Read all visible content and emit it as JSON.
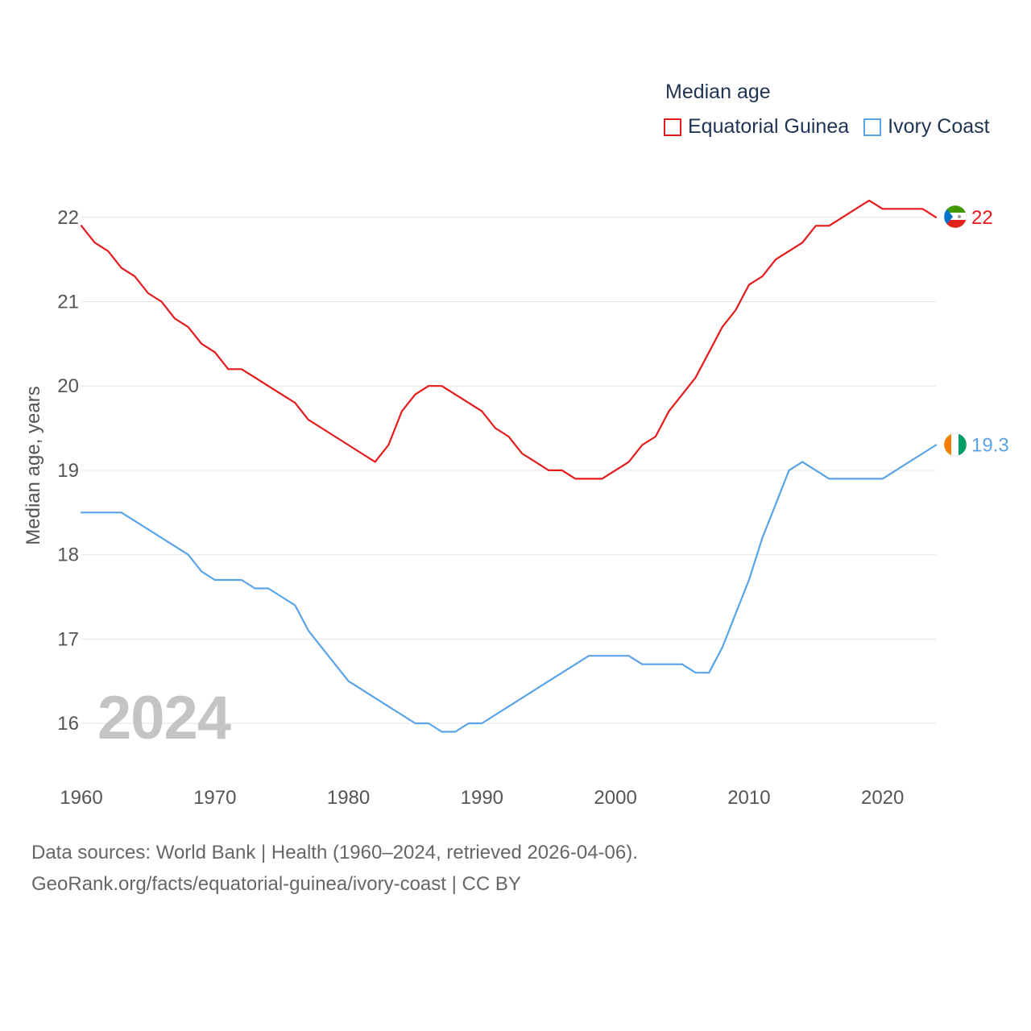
{
  "legend": {
    "title": "Median age",
    "items": [
      {
        "name": "Equatorial Guinea",
        "color": "#e41a1c"
      },
      {
        "name": "Ivory Coast",
        "color": "#5aa3e6"
      }
    ]
  },
  "watermark_year": "2024",
  "sources": {
    "line1": "Data sources: World Bank | Health (1960–2024, retrieved 2026-04-06).",
    "line2": "GeoRank.org/facts/equatorial-guinea/ivory-coast | CC BY"
  },
  "chart_data": {
    "type": "line",
    "title": "Median age",
    "xlabel": "",
    "ylabel": "Median age, years",
    "xlim": [
      1960,
      2024
    ],
    "ylim": [
      15.5,
      22.4
    ],
    "xticks": [
      1960,
      1970,
      1980,
      1990,
      2000,
      2010,
      2020
    ],
    "yticks": [
      16,
      17,
      18,
      19,
      20,
      21,
      22
    ],
    "grid": true,
    "legend_position": "top-right",
    "x": [
      1960,
      1961,
      1962,
      1963,
      1964,
      1965,
      1966,
      1967,
      1968,
      1969,
      1970,
      1971,
      1972,
      1973,
      1974,
      1975,
      1976,
      1977,
      1978,
      1979,
      1980,
      1981,
      1982,
      1983,
      1984,
      1985,
      1986,
      1987,
      1988,
      1989,
      1990,
      1991,
      1992,
      1993,
      1994,
      1995,
      1996,
      1997,
      1998,
      1999,
      2000,
      2001,
      2002,
      2003,
      2004,
      2005,
      2006,
      2007,
      2008,
      2009,
      2010,
      2011,
      2012,
      2013,
      2014,
      2015,
      2016,
      2017,
      2018,
      2019,
      2020,
      2021,
      2022,
      2023,
      2024
    ],
    "series": [
      {
        "name": "Equatorial Guinea",
        "color": "#e41a1c",
        "end_label": "22",
        "flag": "equatorial-guinea-flag",
        "values": [
          21.9,
          21.7,
          21.6,
          21.4,
          21.3,
          21.1,
          21.0,
          20.8,
          20.7,
          20.5,
          20.4,
          20.2,
          20.2,
          20.1,
          20.0,
          19.9,
          19.8,
          19.6,
          19.5,
          19.4,
          19.3,
          19.2,
          19.1,
          19.3,
          19.7,
          19.9,
          20.0,
          20.0,
          19.9,
          19.8,
          19.7,
          19.5,
          19.4,
          19.2,
          19.1,
          19.0,
          19.0,
          18.9,
          18.9,
          18.9,
          19.0,
          19.1,
          19.3,
          19.4,
          19.7,
          19.9,
          20.1,
          20.4,
          20.7,
          20.9,
          21.2,
          21.3,
          21.5,
          21.6,
          21.7,
          21.9,
          21.9,
          22.0,
          22.1,
          22.2,
          22.1,
          22.1,
          22.1,
          22.1,
          22.0
        ]
      },
      {
        "name": "Ivory Coast",
        "color": "#5aa3e6",
        "end_label": "19.3",
        "flag": "ivory-coast-flag",
        "values": [
          18.5,
          18.5,
          18.5,
          18.5,
          18.4,
          18.3,
          18.2,
          18.1,
          18.0,
          17.8,
          17.7,
          17.7,
          17.7,
          17.6,
          17.6,
          17.5,
          17.4,
          17.1,
          16.9,
          16.7,
          16.5,
          16.4,
          16.3,
          16.2,
          16.1,
          16.0,
          16.0,
          15.9,
          15.9,
          16.0,
          16.0,
          16.1,
          16.2,
          16.3,
          16.4,
          16.5,
          16.6,
          16.7,
          16.8,
          16.8,
          16.8,
          16.8,
          16.7,
          16.7,
          16.7,
          16.7,
          16.6,
          16.6,
          16.9,
          17.3,
          17.7,
          18.2,
          18.6,
          19.0,
          19.1,
          19.0,
          18.9,
          18.9,
          18.9,
          18.9,
          18.9,
          19.0,
          19.1,
          19.2,
          19.3
        ]
      }
    ]
  }
}
